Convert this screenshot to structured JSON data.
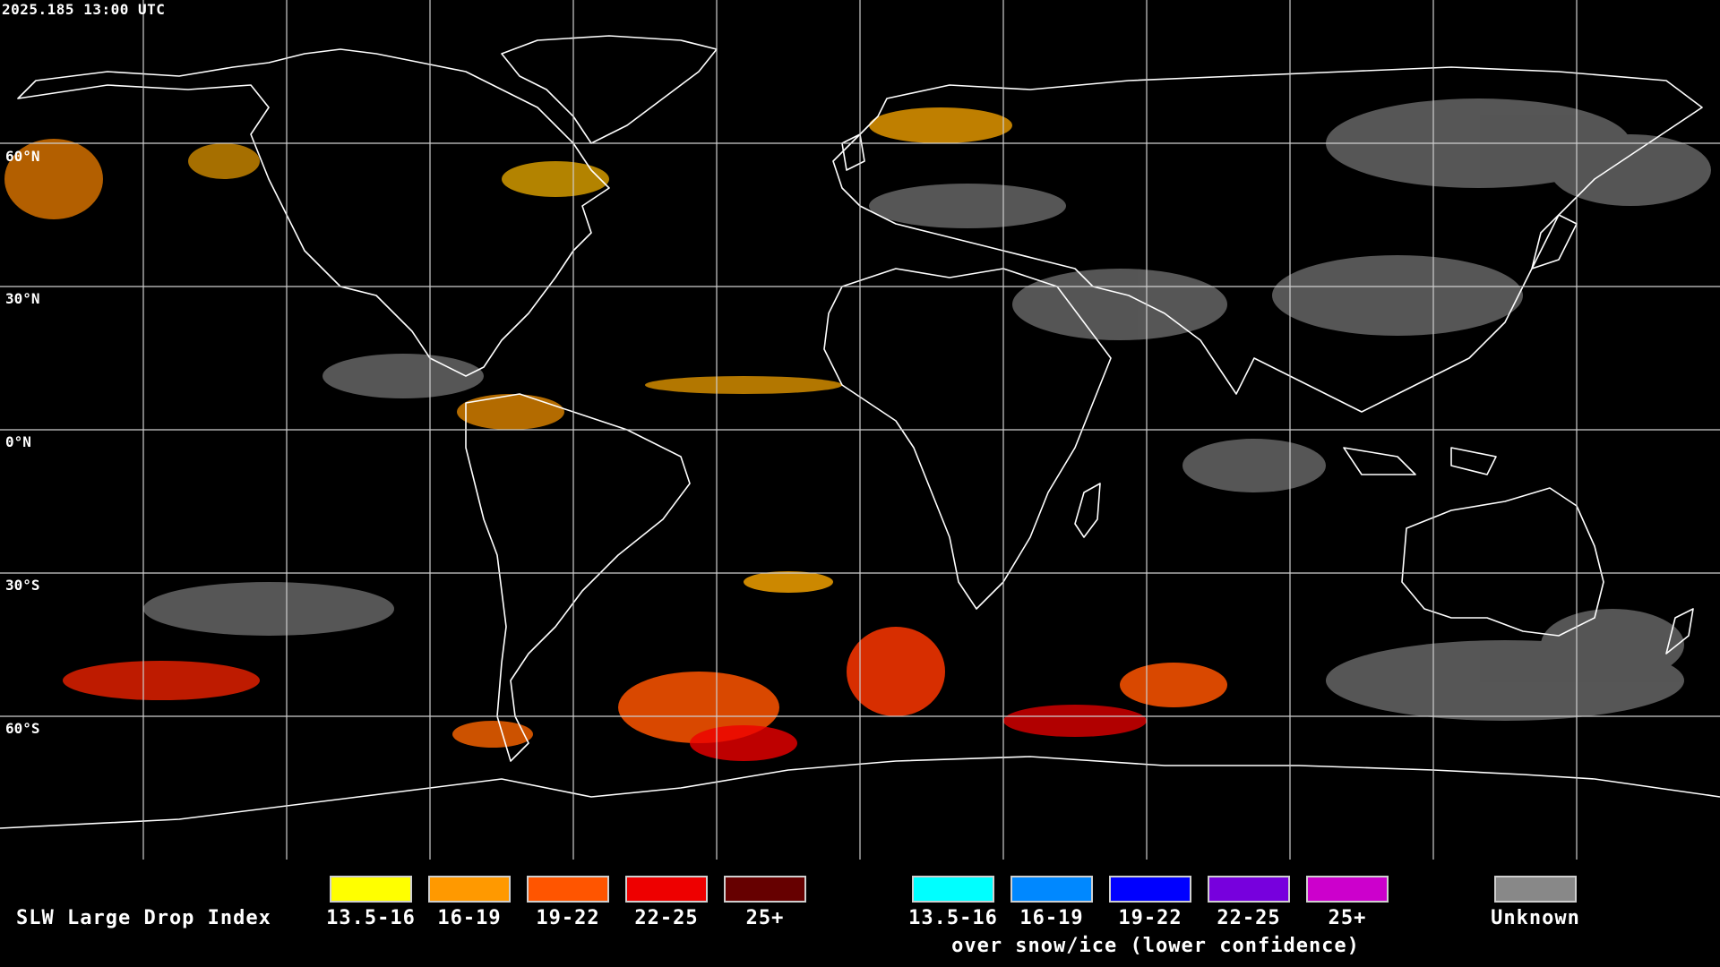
{
  "header": {
    "timestamp": "2025.185 13:00 UTC"
  },
  "grid": {
    "lat_labels": [
      "60°N",
      "30°N",
      "0°N",
      "30°S",
      "60°S"
    ]
  },
  "legend": {
    "title": "SLW Large Drop Index",
    "liquid": [
      {
        "label": "13.5-16",
        "color": "#ffff00"
      },
      {
        "label": "16-19",
        "color": "#ff9900"
      },
      {
        "label": "19-22",
        "color": "#ff5500"
      },
      {
        "label": "22-25",
        "color": "#ee0000"
      },
      {
        "label": "25+",
        "color": "#660000"
      }
    ],
    "snow": [
      {
        "label": "13.5-16",
        "color": "#00ffff"
      },
      {
        "label": "16-19",
        "color": "#0088ff"
      },
      {
        "label": "19-22",
        "color": "#0000ff"
      },
      {
        "label": "22-25",
        "color": "#7700dd"
      },
      {
        "label": "25+",
        "color": "#cc00cc"
      }
    ],
    "snow_caption": "over snow/ice (lower confidence)",
    "unknown": {
      "label": "Unknown",
      "color": "#888888"
    }
  }
}
